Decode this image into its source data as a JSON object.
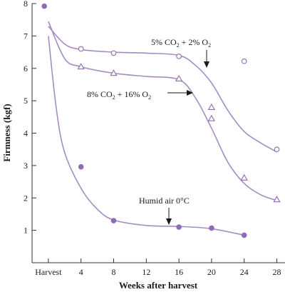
{
  "chart_data": {
    "type": "line",
    "xlabel": "Weeks after harvest",
    "ylabel": "Firmness (kgf)",
    "x_ticks": [
      "Harvest",
      "4",
      "8",
      "12",
      "16",
      "20",
      "24",
      "28"
    ],
    "y_ticks": [
      "1",
      "2",
      "3",
      "4",
      "5",
      "6",
      "7",
      "8"
    ],
    "xlim": [
      -2,
      29
    ],
    "ylim": [
      0,
      8
    ],
    "line_color": "#a58cc3",
    "marker_color": "#8f6bb5",
    "series": [
      {
        "marker": "circle-open",
        "points": [
          [
            4,
            6.6
          ],
          [
            8,
            6.47
          ],
          [
            16,
            6.37
          ],
          [
            24,
            6.22
          ],
          [
            28,
            3.5
          ]
        ],
        "curve": [
          [
            0,
            7.3
          ],
          [
            2,
            6.75
          ],
          [
            4,
            6.58
          ],
          [
            8,
            6.5
          ],
          [
            12,
            6.47
          ],
          [
            16,
            6.4
          ],
          [
            18,
            6.1
          ],
          [
            20,
            5.55
          ],
          [
            22,
            4.7
          ],
          [
            24,
            4.05
          ],
          [
            26,
            3.7
          ],
          [
            28,
            3.42
          ]
        ]
      },
      {
        "marker": "triangle-open",
        "points": [
          [
            4,
            6.05
          ],
          [
            8,
            5.85
          ],
          [
            16,
            5.68
          ],
          [
            20,
            4.8
          ],
          [
            20,
            4.45
          ],
          [
            24,
            2.62
          ],
          [
            28,
            1.95
          ]
        ],
        "curve": [
          [
            0,
            7.45
          ],
          [
            2,
            6.3
          ],
          [
            4,
            6.05
          ],
          [
            8,
            5.85
          ],
          [
            12,
            5.75
          ],
          [
            16,
            5.65
          ],
          [
            18,
            5.1
          ],
          [
            20,
            4.15
          ],
          [
            22,
            3.1
          ],
          [
            24,
            2.45
          ],
          [
            26,
            2.1
          ],
          [
            28,
            1.92
          ]
        ]
      },
      {
        "marker": "circle-filled",
        "points": [
          [
            -0.5,
            7.92
          ],
          [
            4,
            2.96
          ],
          [
            8,
            1.3
          ],
          [
            16,
            1.1
          ],
          [
            20,
            1.07
          ],
          [
            24,
            0.85
          ]
        ],
        "curve": [
          [
            0,
            7.0
          ],
          [
            1,
            4.7
          ],
          [
            2,
            3.4
          ],
          [
            4,
            2.3
          ],
          [
            6,
            1.65
          ],
          [
            8,
            1.32
          ],
          [
            12,
            1.15
          ],
          [
            16,
            1.12
          ],
          [
            20,
            1.05
          ],
          [
            24,
            0.85
          ]
        ]
      }
    ],
    "annotations": [
      {
        "prefix": "5% CO",
        "sub1": "2",
        "mid": " + 2% O",
        "sub2": "2"
      },
      {
        "prefix": "8% CO",
        "sub1": "2",
        "mid": " + 16% O",
        "sub2": "2"
      },
      {
        "text": "Humid air 0°C"
      }
    ]
  }
}
